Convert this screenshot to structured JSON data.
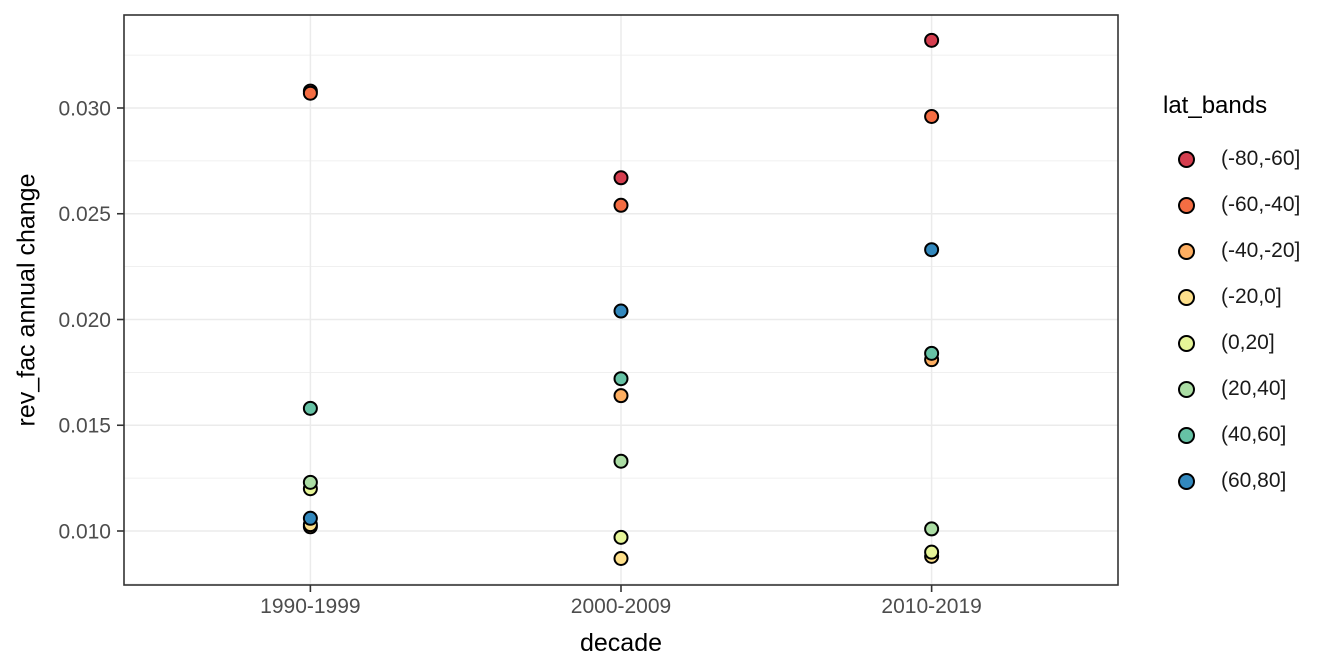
{
  "chart_data": {
    "type": "scatter",
    "title": "",
    "xlabel": "decade",
    "ylabel": "rev_fac annual change",
    "categories": [
      "1990-1999",
      "2000-2009",
      "2010-2019"
    ],
    "y_ticks": [
      0.01,
      0.015,
      0.02,
      0.025,
      0.03
    ],
    "y_tick_labels": [
      "0.010",
      "0.015",
      "0.020",
      "0.025",
      "0.030"
    ],
    "y_minor_ticks": [
      0.0075,
      0.0125,
      0.0175,
      0.0225,
      0.0275,
      0.0325
    ],
    "ylim": [
      0.0074,
      0.0344
    ],
    "grid": true,
    "legend": {
      "title": "lat_bands",
      "position": "right"
    },
    "series": [
      {
        "name": "(-80,-60]",
        "color": "#D53E4F",
        "values": [
          0.0308,
          0.0267,
          0.0332
        ]
      },
      {
        "name": "(-60,-40]",
        "color": "#F46D43",
        "values": [
          0.0307,
          0.0254,
          0.0296
        ]
      },
      {
        "name": "(-40,-20]",
        "color": "#FDAE61",
        "values": [
          0.0102,
          0.0164,
          0.0181
        ]
      },
      {
        "name": "(-20,0]",
        "color": "#FEE08B",
        "values": [
          0.0103,
          0.0087,
          0.0088
        ]
      },
      {
        "name": "(0,20]",
        "color": "#E6F598",
        "values": [
          0.012,
          0.0097,
          0.009
        ]
      },
      {
        "name": "(20,40]",
        "color": "#ABDDA4",
        "values": [
          0.0123,
          0.0133,
          0.0101
        ]
      },
      {
        "name": "(40,60]",
        "color": "#66C2A5",
        "values": [
          0.0158,
          0.0172,
          0.0184
        ]
      },
      {
        "name": "(60,80]",
        "color": "#3288BD",
        "values": [
          0.0106,
          0.0204,
          0.0233
        ]
      }
    ],
    "style": {
      "background": "#FFFFFF",
      "panel_background": "#FFFFFF",
      "grid_color": "#EBEBEB",
      "panel_border_color": "#333333",
      "tick_color": "#333333",
      "tick_label_color": "#4D4D4D",
      "title_color": "#000000",
      "point_stroke": "#000000"
    }
  }
}
